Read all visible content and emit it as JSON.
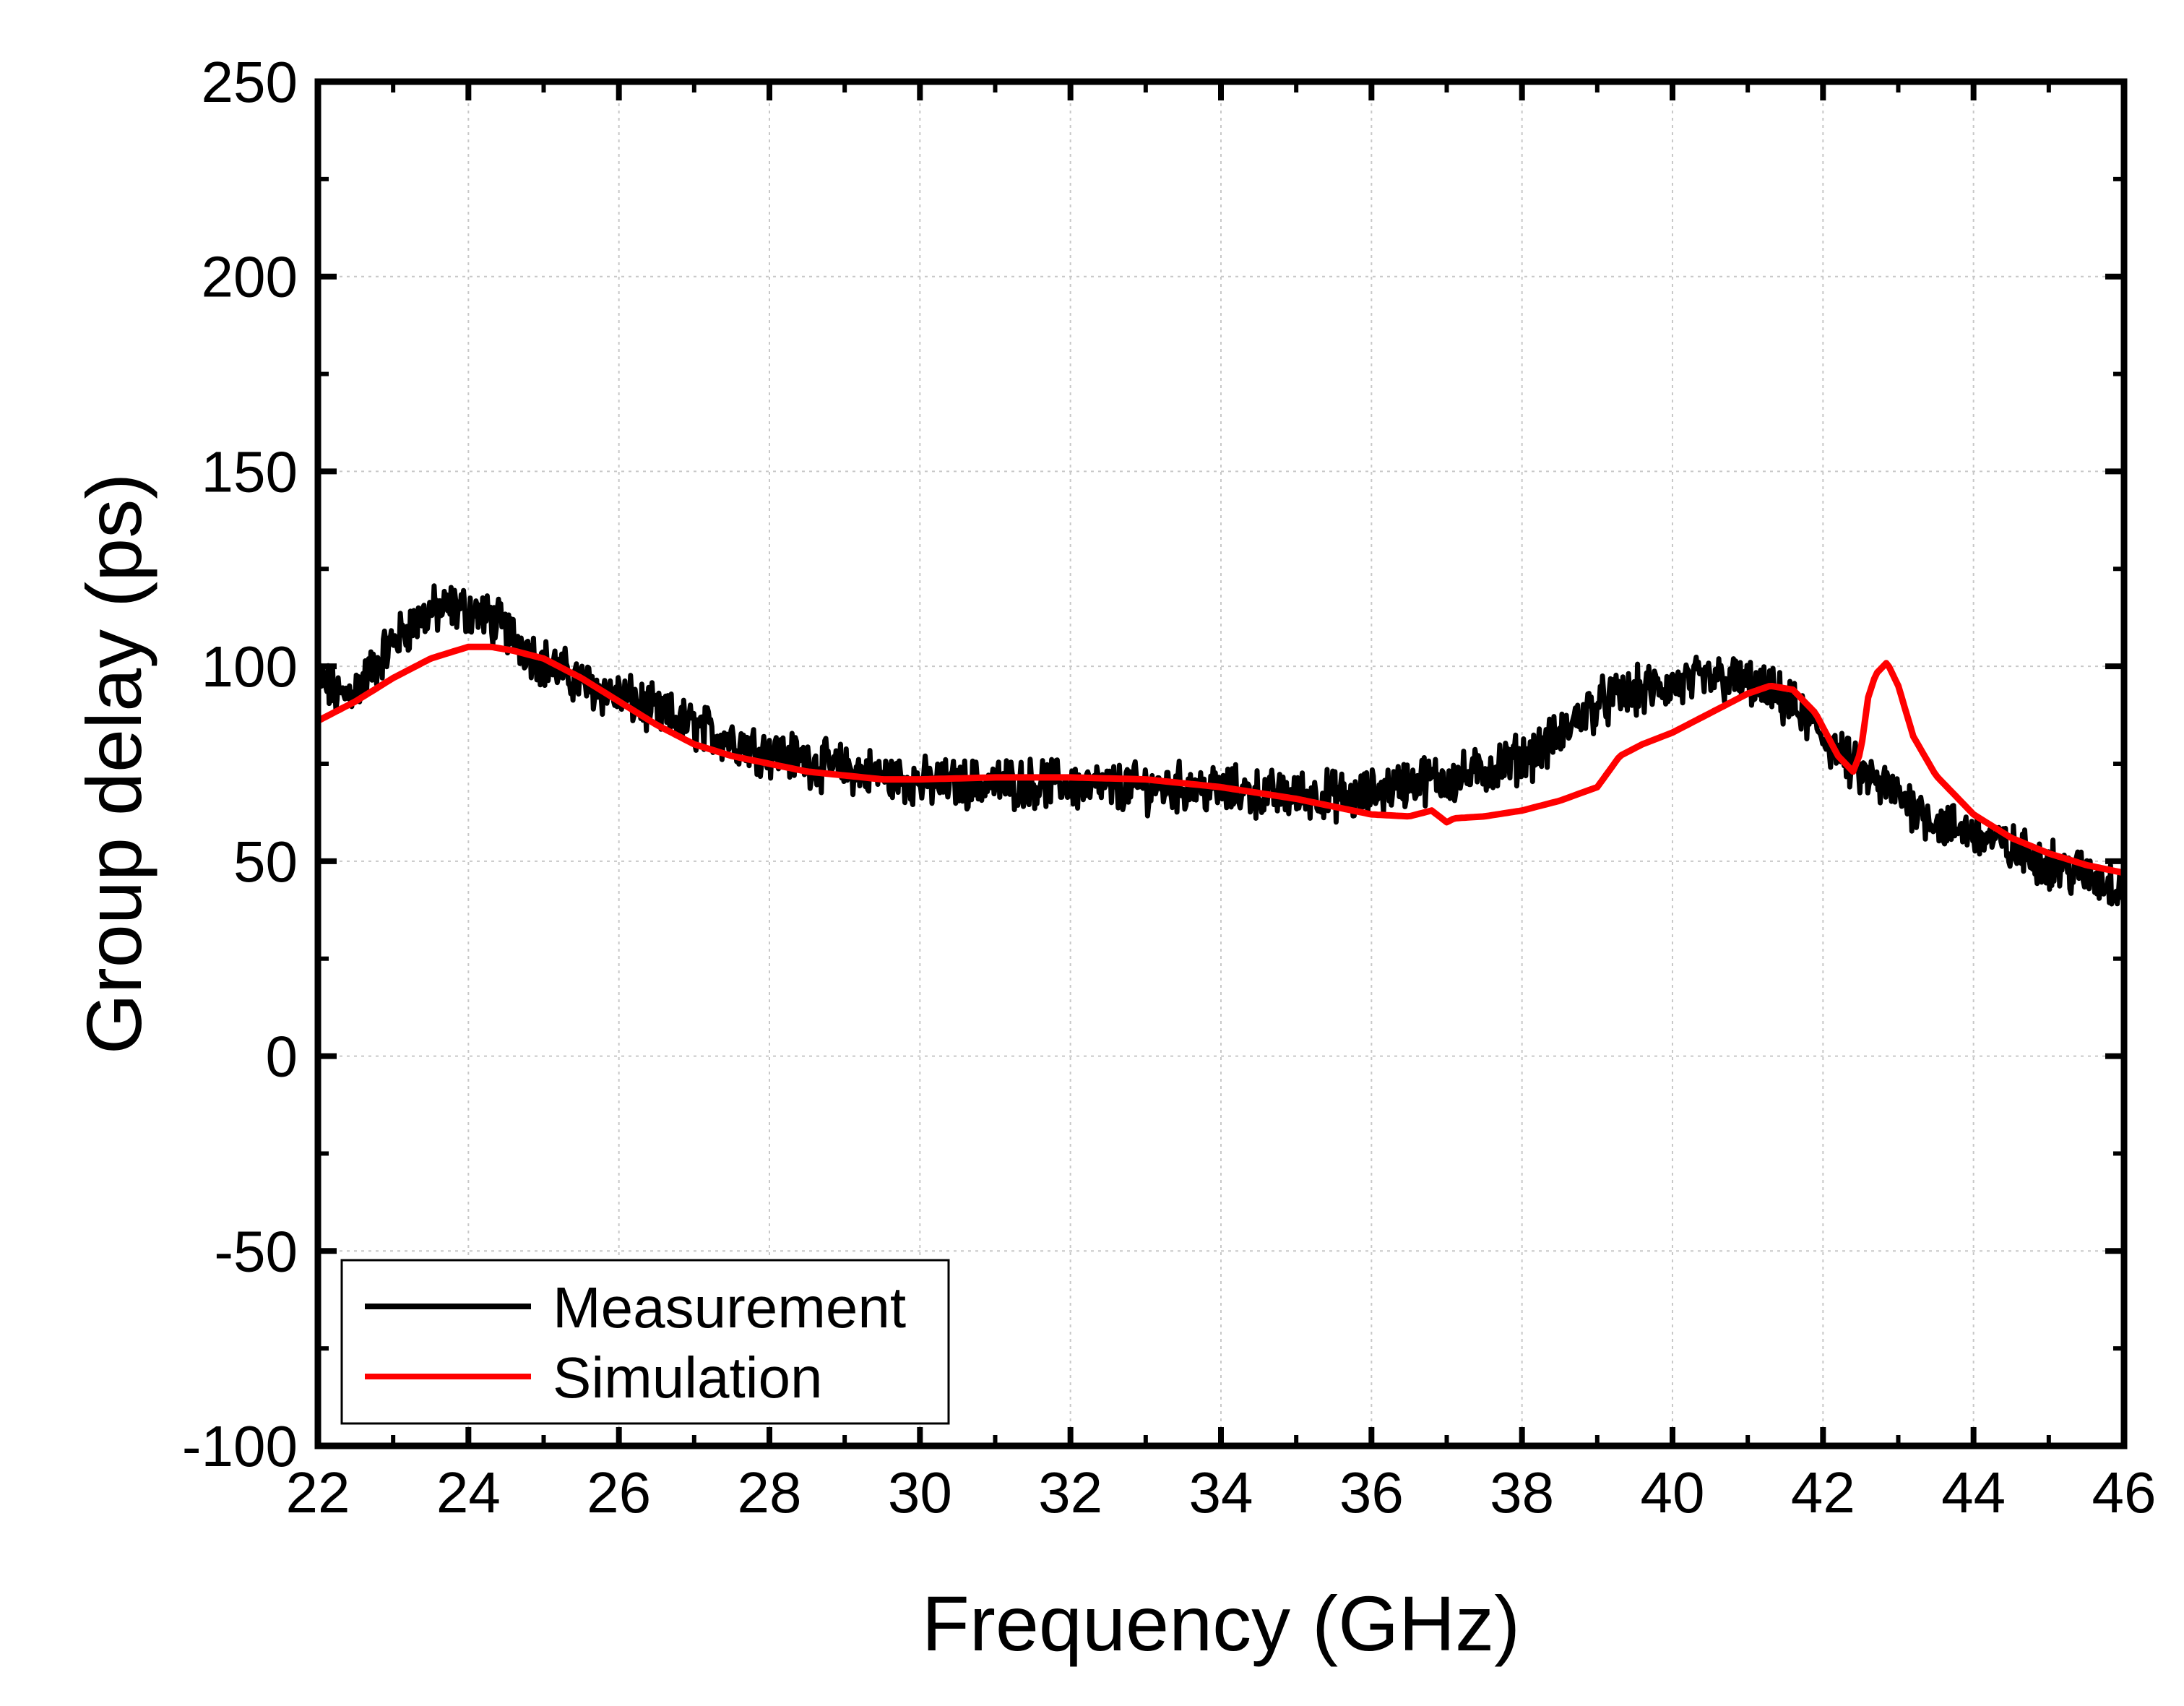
{
  "chart_data": {
    "type": "line",
    "title": "",
    "xlabel": "Frequency (GHz)",
    "ylabel": "Group delay (ps)",
    "xlim": [
      22,
      46
    ],
    "ylim": [
      -100,
      250
    ],
    "x_ticks": [
      22,
      24,
      26,
      28,
      30,
      32,
      34,
      36,
      38,
      40,
      42,
      44,
      46
    ],
    "y_ticks": [
      -100,
      -50,
      0,
      50,
      100,
      150,
      200,
      250
    ],
    "x_tick_labels": [
      "22",
      "24",
      "26",
      "28",
      "30",
      "32",
      "34",
      "36",
      "38",
      "40",
      "42",
      "44",
      "46"
    ],
    "y_tick_labels": [
      "-100",
      "-50",
      "0",
      "50",
      "100",
      "150",
      "200",
      "250"
    ],
    "grid": true,
    "legend_position": "bottom-left",
    "series": [
      {
        "name": "Measurement",
        "color": "#000000",
        "x": [
          22.0,
          22.3,
          22.6,
          22.9,
          23.2,
          23.5,
          23.8,
          24.1,
          24.4,
          24.7,
          25.0,
          25.3,
          25.6,
          25.9,
          26.2,
          26.5,
          26.8,
          27.1,
          27.4,
          27.7,
          28.0,
          28.3,
          28.6,
          28.9,
          29.2,
          29.5,
          29.8,
          30.1,
          30.4,
          30.7,
          31.0,
          31.3,
          31.6,
          31.9,
          32.2,
          32.5,
          32.8,
          33.1,
          33.4,
          33.7,
          34.0,
          34.3,
          34.6,
          34.9,
          35.2,
          35.5,
          35.8,
          36.1,
          36.4,
          36.7,
          37.0,
          37.3,
          37.6,
          37.9,
          38.2,
          38.5,
          38.8,
          39.1,
          39.4,
          39.7,
          40.0,
          40.3,
          40.6,
          40.9,
          41.2,
          41.5,
          41.8,
          42.1,
          42.4,
          42.7,
          43.0,
          43.3,
          43.6,
          43.9,
          44.2,
          44.5,
          44.8,
          45.1,
          45.4,
          45.7,
          46.0
        ],
        "values": [
          97,
          92,
          96,
          104,
          110,
          114,
          115,
          114,
          111,
          106,
          101,
          98,
          95,
          93,
          91,
          88,
          86,
          84,
          82,
          80,
          78,
          77,
          75,
          74,
          73,
          72,
          71,
          70,
          70,
          70,
          70,
          70,
          70,
          70,
          69,
          69,
          69,
          69,
          69,
          69,
          68,
          68,
          67,
          67,
          67,
          67,
          66,
          68,
          70,
          71,
          71,
          72,
          74,
          76,
          78,
          82,
          88,
          91,
          93,
          94,
          95,
          96,
          97,
          96,
          94,
          91,
          86,
          80,
          74,
          70,
          67,
          63,
          59,
          58,
          56,
          53,
          51,
          49,
          47,
          45,
          43
        ],
        "noise_amplitude": 5
      },
      {
        "name": "Simulation",
        "color": "#ff0000",
        "x": [
          22.0,
          22.5,
          23.0,
          23.5,
          24.0,
          24.3,
          24.6,
          25.0,
          25.5,
          26.0,
          26.5,
          27.0,
          27.5,
          28.0,
          28.5,
          29.0,
          29.5,
          30.0,
          31.0,
          32.0,
          33.0,
          34.0,
          35.0,
          35.5,
          36.0,
          36.5,
          36.8,
          37.0,
          37.1,
          37.5,
          38.0,
          38.5,
          39.0,
          39.3,
          39.6,
          40.0,
          40.5,
          41.0,
          41.3,
          41.6,
          41.9,
          42.2,
          42.4,
          42.5,
          42.6,
          42.7,
          42.85,
          43.0,
          43.2,
          43.5,
          44.0,
          44.5,
          45.0,
          45.5,
          46.0
        ],
        "values": [
          86,
          91,
          97,
          102,
          105,
          105,
          104,
          102,
          97,
          91,
          85,
          80,
          77,
          75,
          73,
          72,
          71,
          71,
          71.5,
          71.5,
          71,
          69,
          66,
          64,
          62,
          61.5,
          63,
          60,
          61,
          61.5,
          63,
          65.5,
          69,
          77,
          80,
          83,
          88,
          93,
          95,
          94,
          88,
          77,
          73,
          78,
          92,
          98,
          101,
          95,
          82,
          72,
          62,
          56,
          52,
          49,
          47
        ]
      }
    ]
  }
}
